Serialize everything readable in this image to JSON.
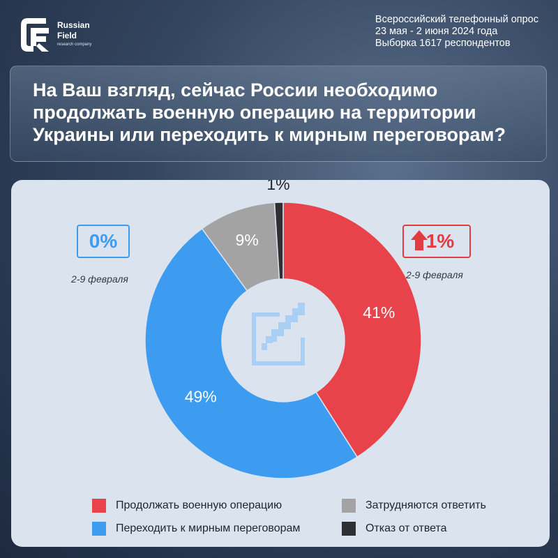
{
  "brand": {
    "name_line1": "Russian",
    "name_line2": "Field",
    "tagline": "research company"
  },
  "survey": {
    "line1": "Всероссийский телефонный опрос",
    "line2": "23 мая - 2 июня 2024 года",
    "line3": "Выборка 1617 респондентов"
  },
  "question": "На Ваш взгляд, сейчас России необходимо продолжать военную  операцию на территории Украины или переходить к мирным  переговорам?",
  "changes": {
    "left": {
      "value": "0%",
      "date": "2-9 февраля",
      "color": "#3d9cf0"
    },
    "right": {
      "value": "1%",
      "date": "2-9 февраля",
      "color": "#e23c42",
      "direction": "up"
    }
  },
  "center_icon": "edit-pencil-icon",
  "chart_data": {
    "type": "pie",
    "style": "donut",
    "series": [
      {
        "name": "Продолжать военную  операцию",
        "value": 41,
        "label": "41%",
        "color": "#e8434a"
      },
      {
        "name": "Переходить к мирным  переговорам",
        "value": 49,
        "label": "49%",
        "color": "#3d9cf0"
      },
      {
        "name": "Затрудняются ответить",
        "value": 9,
        "label": "9%",
        "color": "#a3a3a3"
      },
      {
        "name": "Отказ от ответа",
        "value": 1,
        "label": "1%",
        "color": "#2d2f33"
      }
    ],
    "legend_placement": "bottom"
  }
}
